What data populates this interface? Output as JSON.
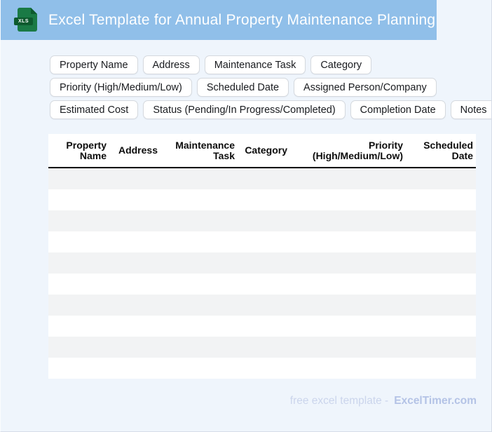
{
  "header": {
    "title": "Excel Template for Annual Property Maintenance Planning",
    "icon_label": "XLS"
  },
  "chips": {
    "rows": [
      [
        "Property Name",
        "Address",
        "Maintenance Task",
        "Category"
      ],
      [
        "Priority (High/Medium/Low)",
        "Scheduled Date",
        "Assigned Person/Company"
      ],
      [
        "Estimated Cost",
        "Status (Pending/In Progress/Completed)",
        "Completion Date",
        "Notes"
      ]
    ]
  },
  "table": {
    "columns": [
      {
        "label": "Property Name"
      },
      {
        "label": "Address"
      },
      {
        "label": "Maintenance Task"
      },
      {
        "label": "Category"
      },
      {
        "label": "Priority (High/Medium/Low)"
      },
      {
        "label": "Scheduled Date"
      }
    ],
    "empty_row_count": 10
  },
  "footer": {
    "tagline": "free excel template -",
    "brand": "ExcelTimer.com"
  },
  "colors": {
    "banner_bg": "#90bfe9",
    "page_bg": "#eff5fc",
    "icon_green": "#1a7a45",
    "icon_dark_green": "#0d5a2e",
    "chip_border": "#d5d9de",
    "stripe": "#f2f3f4",
    "header_rule": "#000000",
    "footer_text": "#cbd5ec",
    "footer_brand": "#b4c3e6"
  }
}
